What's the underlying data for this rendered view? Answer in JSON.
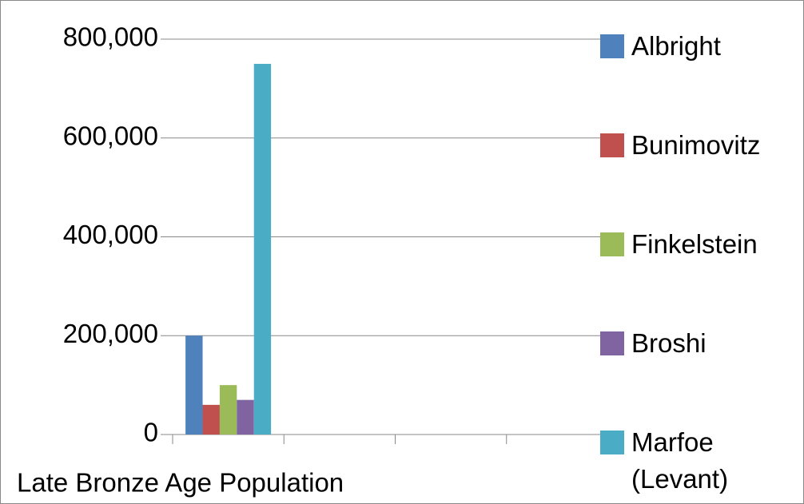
{
  "chart_data": {
    "type": "bar",
    "categories": [
      "Late Bronze Age Population",
      null,
      null,
      null
    ],
    "series": [
      {
        "name": "Albright",
        "color": "#4f81bd",
        "values": [
          200000,
          null,
          null,
          null
        ]
      },
      {
        "name": "Bunimovitz",
        "color": "#c0504d",
        "values": [
          60000,
          null,
          null,
          null
        ]
      },
      {
        "name": "Finkelstein",
        "color": "#9bbb59",
        "values": [
          100000,
          null,
          null,
          null
        ]
      },
      {
        "name": "Broshi",
        "color": "#8064a2",
        "values": [
          70000,
          null,
          null,
          null
        ]
      },
      {
        "name": "Marfoe (Levant)",
        "color": "#4bacc6",
        "values": [
          750000,
          null,
          null,
          null
        ]
      }
    ],
    "ylim": [
      0,
      800000
    ],
    "yticks": [
      0,
      {
        "value": 200000,
        "label": "200,000"
      },
      {
        "value": 400000,
        "label": "400,000"
      },
      {
        "value": 600000,
        "label": "600,000"
      },
      {
        "value": 800000,
        "label": "800,000"
      }
    ],
    "grid": true,
    "legend": "right"
  }
}
